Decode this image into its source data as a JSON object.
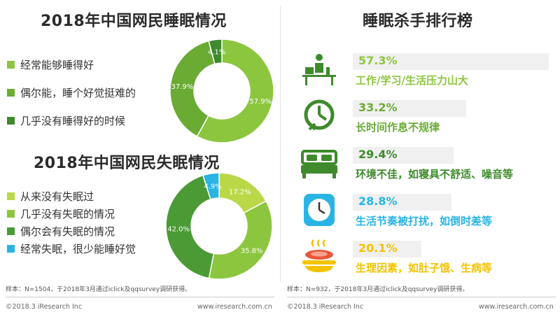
{
  "sleep": {
    "title": "2018年中国网民睡眠情况",
    "chart_data": {
      "type": "pie",
      "categories": [
        "经常能够睡得好",
        "偶尔能，睡个好觉挺难的",
        "几乎没有睡得好的时候"
      ],
      "values": [
        57.9,
        37.9,
        4.1
      ],
      "value_labels": [
        "57.9%",
        "37.9%",
        "4.1%"
      ],
      "colors": [
        "#8cc63f",
        "#6aab34",
        "#3e8a2c"
      ],
      "legend_position": "left"
    }
  },
  "insomnia": {
    "title": "2018年中国网民失眠情况",
    "chart_data": {
      "type": "pie",
      "categories": [
        "从来没有失眠过",
        "几乎没有失眠的情况",
        "偶尔会有失眠的情况",
        "经常失眠，很少能睡好觉"
      ],
      "values": [
        17.2,
        35.8,
        42.0,
        4.9
      ],
      "value_labels": [
        "17.2%",
        "35.8%",
        "42.0%",
        "4.9%"
      ],
      "colors": [
        "#b9d848",
        "#8cc63f",
        "#4a9a35",
        "#2ab4e4"
      ],
      "legend_position": "left"
    },
    "note": "样本：N=1504，于2018年3月通过iclick及qqsurvey调研获得。"
  },
  "ranking": {
    "title": "睡眠杀手排行榜",
    "chart_data": {
      "type": "bar",
      "categories": [
        "工作/学习/生活压力山大",
        "长时间作息不规律",
        "环境不佳，如寝具不舒适、噪音等",
        "生活节奏被打扰，如倒时差等",
        "生理因素，如肚子饿、生病等"
      ],
      "values": [
        57.3,
        33.2,
        29.4,
        28.8,
        20.1
      ],
      "value_labels": [
        "57.3%",
        "33.2%",
        "29.4%",
        "28.8%",
        "20.1%"
      ]
    },
    "icons": [
      "desk-worker-icon",
      "clock-cross-icon",
      "bed-icon",
      "wall-clock-icon",
      "food-icon"
    ],
    "colors": [
      "#8cc63f",
      "#6aab34",
      "#3e8a2c",
      "#2ab4e4",
      "#f3c300"
    ],
    "note": "样本：N=932，于2018年3月通过iclick及qqsurvey调研获得。"
  },
  "footer": {
    "left_copyright": "©2018.3 iResearch Inc",
    "left_url": "www.iresearch.com.cn",
    "right_copyright": "©2018.3 iResearch Inc",
    "right_url": "www.iresearch.com.cn"
  }
}
